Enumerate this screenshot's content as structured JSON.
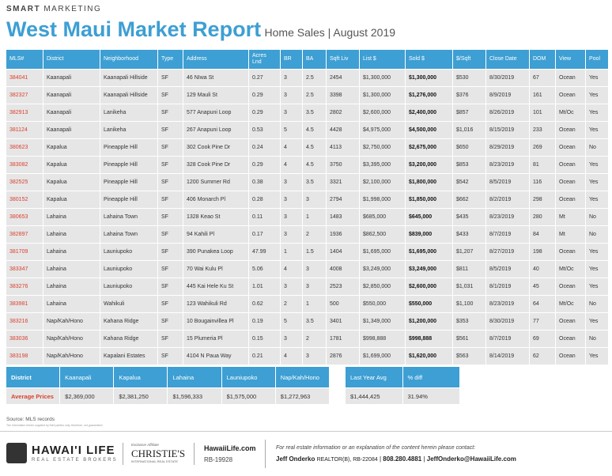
{
  "header": {
    "brand_bold": "SMART",
    "brand": "MARKETING",
    "title": "West Maui Market Report",
    "subtitle": "Home Sales | August 2019"
  },
  "table": {
    "columns": [
      "MLS#",
      "District",
      "Neighborhood",
      "Type",
      "Address",
      "Acres Lnd",
      "BR",
      "BA",
      "Sqft Liv",
      "List $",
      "Sold $",
      "$/Sqft",
      "Close Date",
      "DOM",
      "View",
      "Pool"
    ],
    "rows": [
      [
        "384041",
        "Kaanapali",
        "Kaanapali Hillside",
        "SF",
        "46 NIwa St",
        "0.27",
        "3",
        "2.5",
        "2454",
        "$1,300,000",
        "$1,300,000",
        "$530",
        "8/30/2019",
        "67",
        "Ocean",
        "Yes"
      ],
      [
        "382327",
        "Kaanapali",
        "Kaanapali Hillside",
        "SF",
        "129 Mauli St",
        "0.29",
        "3",
        "2.5",
        "3398",
        "$1,300,000",
        "$1,276,000",
        "$376",
        "8/9/2019",
        "161",
        "Ocean",
        "Yes"
      ],
      [
        "382913",
        "Kaanapali",
        "Lanikeha",
        "SF",
        "577 Anapuni Loop",
        "0.29",
        "3",
        "3.5",
        "2802",
        "$2,600,000",
        "$2,400,000",
        "$857",
        "8/26/2019",
        "101",
        "Mt/Oc",
        "Yes"
      ],
      [
        "381124",
        "Kaanapali",
        "Lanikeha",
        "SF",
        "267 Anapuni Loop",
        "0.53",
        "5",
        "4.5",
        "4428",
        "$4,975,000",
        "$4,500,000",
        "$1,016",
        "8/15/2019",
        "233",
        "Ocean",
        "Yes"
      ],
      [
        "380623",
        "Kapalua",
        "Pineapple Hill",
        "SF",
        "302 Cook Pine Dr",
        "0.24",
        "4",
        "4.5",
        "4113",
        "$2,750,000",
        "$2,675,000",
        "$650",
        "8/29/2019",
        "269",
        "Ocean",
        "No"
      ],
      [
        "383082",
        "Kapalua",
        "Pineapple Hill",
        "SF",
        "328 Cook Pine Dr",
        "0.29",
        "4",
        "4.5",
        "3750",
        "$3,395,000",
        "$3,200,000",
        "$853",
        "8/23/2019",
        "81",
        "Ocean",
        "Yes"
      ],
      [
        "382525",
        "Kapalua",
        "Pineapple Hill",
        "SF",
        "1200 Summer Rd",
        "0.38",
        "3",
        "3.5",
        "3321",
        "$2,100,000",
        "$1,800,000",
        "$542",
        "8/5/2019",
        "116",
        "Ocean",
        "Yes"
      ],
      [
        "380152",
        "Kapalua",
        "Pineapple Hill",
        "SF",
        "406 Monarch Pl",
        "0.28",
        "3",
        "3",
        "2794",
        "$1,998,000",
        "$1,850,000",
        "$662",
        "8/2/2019",
        "298",
        "Ocean",
        "Yes"
      ],
      [
        "380653",
        "Lahaina",
        "Lahaina Town",
        "SF",
        "1328 Keao St",
        "0.11",
        "3",
        "1",
        "1483",
        "$685,000",
        "$645,000",
        "$435",
        "8/23/2019",
        "280",
        "Mt",
        "No"
      ],
      [
        "382897",
        "Lahaina",
        "Lahaina Town",
        "SF",
        "94 Kahili Pl",
        "0.17",
        "3",
        "2",
        "1936",
        "$862,500",
        "$839,000",
        "$433",
        "8/7/2019",
        "84",
        "Mt",
        "No"
      ],
      [
        "381709",
        "Lahaina",
        "Launiupoko",
        "SF",
        "390 Punakea Loop",
        "47.99",
        "1",
        "1.5",
        "1404",
        "$1,695,000",
        "$1,695,000",
        "$1,207",
        "8/27/2019",
        "198",
        "Ocean",
        "Yes"
      ],
      [
        "383347",
        "Lahaina",
        "Launiupoko",
        "SF",
        "70 Wai Kulu Pl",
        "5.06",
        "4",
        "3",
        "4008",
        "$3,249,000",
        "$3,249,000",
        "$811",
        "8/5/2019",
        "40",
        "Mt/Oc",
        "Yes"
      ],
      [
        "383276",
        "Lahaina",
        "Launiupoko",
        "SF",
        "445 Kai Hele Ku St",
        "1.01",
        "3",
        "3",
        "2523",
        "$2,850,000",
        "$2,600,000",
        "$1,031",
        "8/1/2019",
        "45",
        "Ocean",
        "Yes"
      ],
      [
        "383981",
        "Lahaina",
        "Wahikuli",
        "SF",
        "123 Wahikuli Rd",
        "0.62",
        "2",
        "1",
        "500",
        "$550,000",
        "$550,000",
        "$1,100",
        "8/23/2019",
        "64",
        "Mt/Oc",
        "No"
      ],
      [
        "383216",
        "Nap/Kah/Hono",
        "Kahana Ridge",
        "SF",
        "10 Bougainvillea Pl",
        "0.19",
        "5",
        "3.5",
        "3401",
        "$1,349,000",
        "$1,200,000",
        "$353",
        "8/30/2019",
        "77",
        "Ocean",
        "Yes"
      ],
      [
        "383036",
        "Nap/Kah/Hono",
        "Kahana Ridge",
        "SF",
        "15 Plumeria Pl",
        "0.15",
        "3",
        "2",
        "1781",
        "$998,888",
        "$998,888",
        "$561",
        "8/7/2019",
        "69",
        "Ocean",
        "No"
      ],
      [
        "383198",
        "Nap/Kah/Hono",
        "Kapalani Estates",
        "SF",
        "4104 N Paua Way",
        "0.21",
        "4",
        "3",
        "2876",
        "$1,699,000",
        "$1,620,000",
        "$563",
        "8/14/2019",
        "62",
        "Ocean",
        "Yes"
      ]
    ]
  },
  "summary": {
    "header": [
      "District",
      "Kaanapali",
      "Kapalua",
      "Lahaina",
      "Launiupoko",
      "Nap/Kah/Hono"
    ],
    "row": [
      "Average Prices",
      "$2,369,000",
      "$2,381,250",
      "$1,596,333",
      "$1,575,000",
      "$1,272,963"
    ]
  },
  "comparison": {
    "header": [
      "Last Year Avg",
      "% diff"
    ],
    "row": [
      "$1,444,425",
      "31.94%"
    ]
  },
  "source": "Source: MLS records",
  "disclaimer": "The information herein supplied by third parties only, therefore, not guaranteed",
  "footer": {
    "logo": "HAWAI'I LIFE",
    "logo_sub": "REAL ESTATE BROKERS",
    "affiliate": "Exclusive Affiliate",
    "christies": "CHRISTIE'S",
    "christies_sub": "INTERNATIONAL REAL ESTATE",
    "site": "HawaiiLife.com",
    "license": "RB-19928",
    "contact_note": "For real estate information or an explanation of the content herein please contact:",
    "agent": "Jeff Onderko",
    "agent_title": "REALTOR(B), RB-22084",
    "phone": "808.280.4881",
    "email": "JeffOnderko@HawaiiLife.com"
  }
}
